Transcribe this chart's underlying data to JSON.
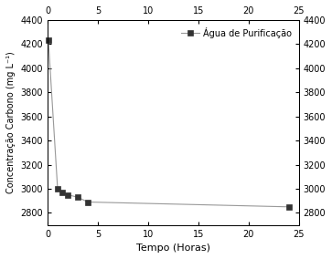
{
  "x": [
    0.083,
    1,
    1.5,
    2,
    3,
    4,
    24
  ],
  "y": [
    4230,
    3000,
    2970,
    2950,
    2930,
    2890,
    2850
  ],
  "line_color": "#999999",
  "marker_color": "#333333",
  "marker": "s",
  "marker_size": 4,
  "legend_label": "Água de Purificação",
  "xlabel": "Tempo (Horas)",
  "ylabel": "Concentração Carbono (mg L⁻¹)",
  "ylim": [
    2700,
    4400
  ],
  "yticks": [
    2800,
    3000,
    3200,
    3400,
    3600,
    3800,
    4000,
    4200,
    4400
  ],
  "xlim": [
    0,
    25
  ],
  "xticks": [
    0,
    5,
    10,
    15,
    20,
    25
  ],
  "background_color": "#ffffff",
  "line_width": 0.8,
  "legend_fontsize": 7,
  "axis_fontsize": 7,
  "label_fontsize": 8
}
